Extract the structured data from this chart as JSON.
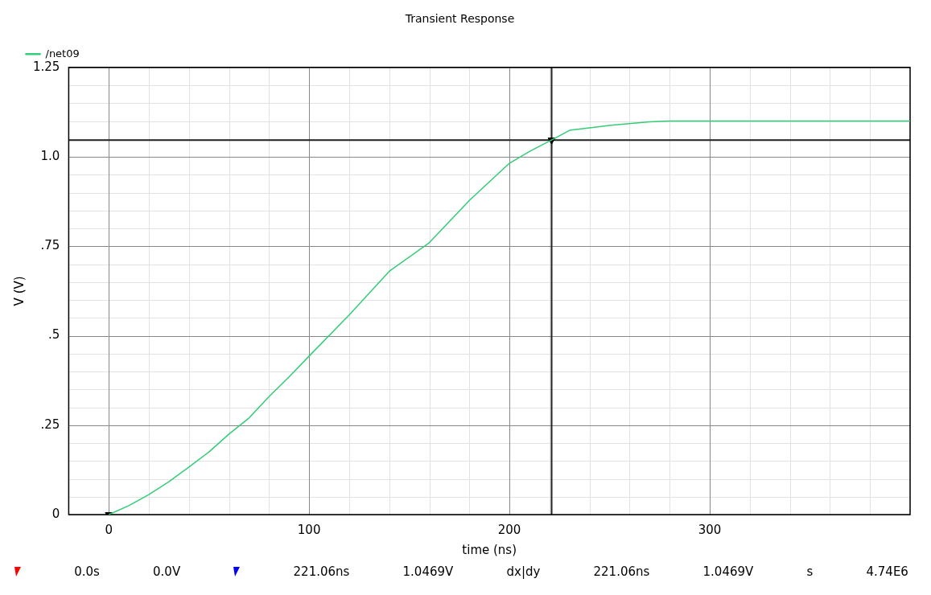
{
  "chart_data": {
    "type": "line",
    "title": "Transient Response",
    "xlabel": "time (ns)",
    "ylabel": "V (V)",
    "xlim": [
      -20,
      400
    ],
    "xticks": [
      0,
      100,
      200,
      300
    ],
    "ylim": [
      0,
      1.25
    ],
    "yticks": [
      {
        "value": 0,
        "label": "0"
      },
      {
        "value": 0.25,
        "label": ".25"
      },
      {
        "value": 0.5,
        "label": ".5"
      },
      {
        "value": 0.75,
        "label": ".75"
      },
      {
        "value": 1,
        "label": "1.0"
      },
      {
        "value": 1.25,
        "label": "1.25"
      }
    ],
    "grid": true,
    "legend": "top left",
    "marker": "none",
    "line_style": "solid",
    "series": [
      {
        "name": "/net09",
        "color": "#33cc77",
        "x": [
          0,
          10,
          20,
          30,
          40,
          50,
          60,
          70,
          80,
          90,
          100,
          120,
          140,
          160,
          180,
          200,
          210,
          221.06,
          230,
          250,
          270,
          280,
          400
        ],
        "values": [
          0,
          0.025,
          0.056,
          0.092,
          0.133,
          0.175,
          0.225,
          0.27,
          0.33,
          0.385,
          0.443,
          0.558,
          0.68,
          0.76,
          0.878,
          0.982,
          1.015,
          1.0469,
          1.074,
          1.088,
          1.098,
          1.1,
          1.1
        ]
      },
      {
        "type": "scatter",
        "color": "#000000",
        "marker": "triangle",
        "x": [
          0,
          221.06
        ],
        "values": [
          0,
          1.0469
        ]
      }
    ],
    "ref_lines": [
      {
        "axis": "x",
        "value": 221.06,
        "color": "#222222"
      },
      {
        "axis": "y",
        "value": 1.0469,
        "color": "#222222"
      }
    ],
    "annotations": [
      "0.0s",
      "0.0V",
      "221.06ns",
      "1.0469V",
      "dx|dy",
      "221.06ns",
      "1.0469V",
      "s",
      "4.74E6"
    ]
  }
}
